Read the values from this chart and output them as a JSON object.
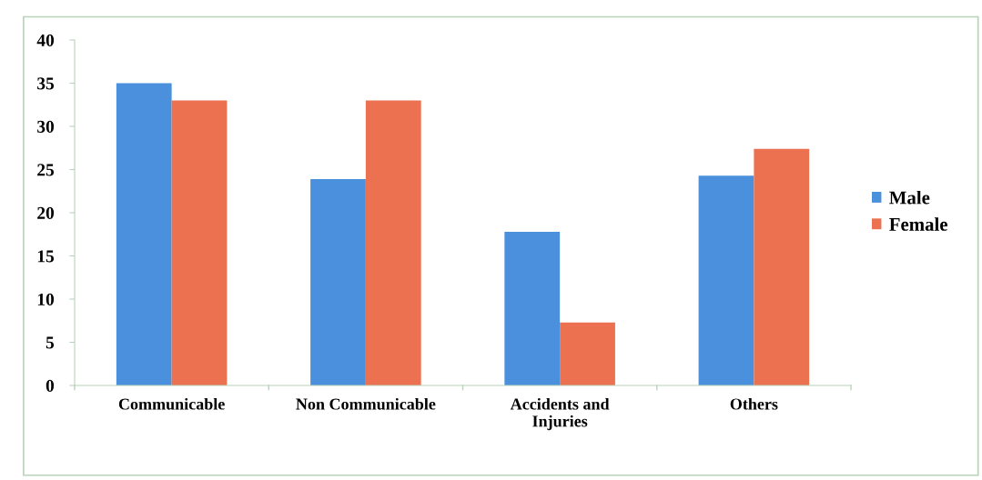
{
  "chart_data": {
    "type": "bar",
    "categories": [
      "Communicable",
      "Non Communicable",
      "Accidents and\nInjuries",
      "Others"
    ],
    "series": [
      {
        "name": "Male",
        "color": "#4a90dc",
        "values": [
          35,
          23.9,
          17.8,
          24.3
        ]
      },
      {
        "name": "Female",
        "color": "#ec7150",
        "values": [
          33,
          33,
          7.3,
          27.4
        ]
      }
    ],
    "ylim": [
      0,
      40
    ],
    "yticks": [
      0,
      5,
      10,
      15,
      20,
      25,
      30,
      35,
      40
    ],
    "grid": false,
    "legend": "right"
  }
}
